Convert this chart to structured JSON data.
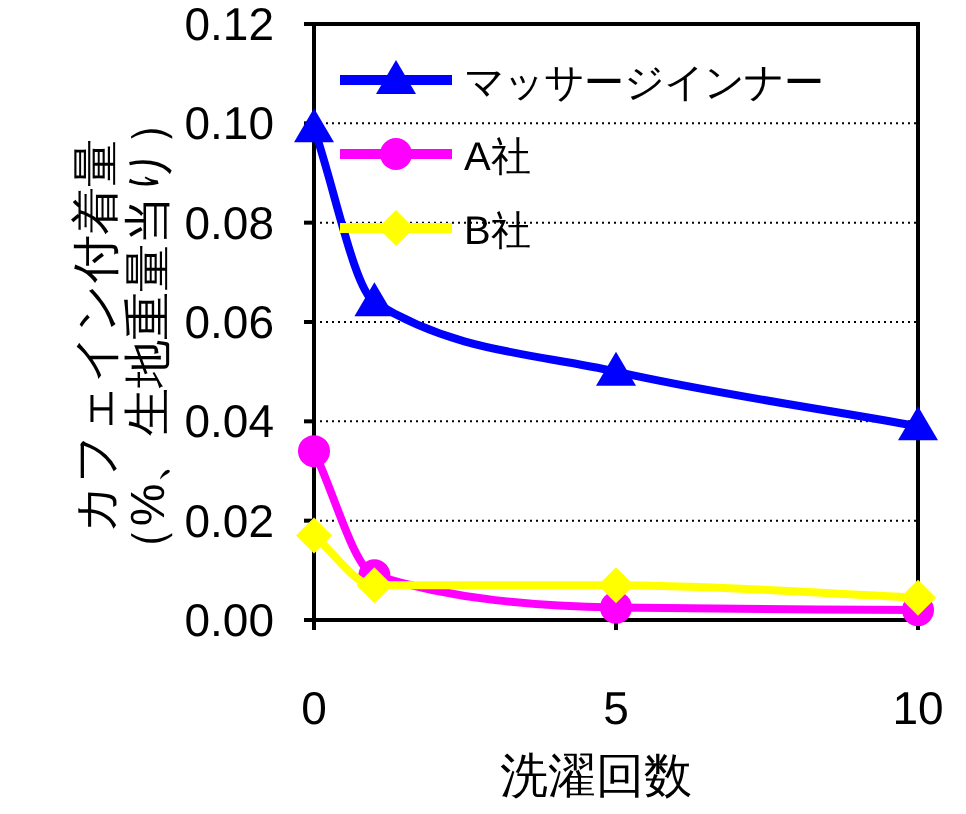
{
  "chart_data": {
    "type": "line",
    "xlabel": "洗濯回数",
    "ylabel": "カフェイン付着量（%、生地重量当り）",
    "x": [
      0,
      1,
      5,
      10
    ],
    "xlim": [
      0,
      10
    ],
    "xticks": [
      0,
      5,
      10
    ],
    "ylim": [
      0,
      0.12
    ],
    "yticks": [
      {
        "value": 0,
        "label": "0.00"
      },
      {
        "value": 0.02,
        "label": "0.02"
      },
      {
        "value": 0.04,
        "label": "0.04"
      },
      {
        "value": 0.06,
        "label": "0.06"
      },
      {
        "value": 0.08,
        "label": "0.08"
      },
      {
        "value": 0.1,
        "label": "0.10"
      },
      {
        "value": 0.12,
        "label": "0.12"
      }
    ],
    "grid": "y",
    "legend": "top left",
    "series": [
      {
        "name": "マッサージインナー",
        "color": "#0000ff",
        "marker": "triangle",
        "values": [
          0.099,
          0.064,
          0.05,
          0.039
        ]
      },
      {
        "name": "A社",
        "color": "#ff00ff",
        "marker": "circle",
        "values": [
          0.034,
          0.009,
          0.0025,
          0.002
        ]
      },
      {
        "name": "B社",
        "color": "#ffff00",
        "marker": "diamond",
        "values": [
          0.017,
          0.007,
          0.007,
          0.0045
        ]
      }
    ]
  }
}
